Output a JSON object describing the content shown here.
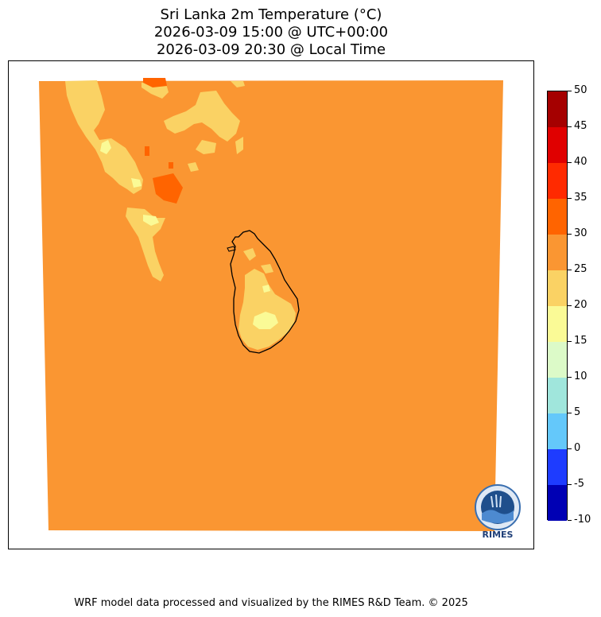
{
  "title": {
    "line1": "Sri Lanka 2m Temperature (°C)",
    "line2": "2026-03-09 15:00 @ UTC+00:00",
    "line3": "2026-03-09 20:30 @ Local Time"
  },
  "legend": {
    "levels": [
      "50",
      "45",
      "40",
      "35",
      "30",
      "25",
      "20",
      "15",
      "10",
      "5",
      "0",
      "-5",
      "-10"
    ],
    "colors": [
      "#a50000",
      "#e00000",
      "#ff2a00",
      "#ff6400",
      "#fa9632",
      "#fad264",
      "#fafa96",
      "#dcfac8",
      "#a0e6dc",
      "#64c8fa",
      "#1e3cff",
      "#0000b4"
    ]
  },
  "map": {
    "base_color": "#fa9632",
    "band_20_25_color": "#fad264",
    "band_15_20_color": "#fafa96",
    "band_30_35_color": "#ff6400",
    "coastline_color": "#000000"
  },
  "logo": {
    "text": "RIMES"
  },
  "footer": {
    "text": "WRF model data processed and visualized by the RIMES R&D Team. © 2025"
  }
}
